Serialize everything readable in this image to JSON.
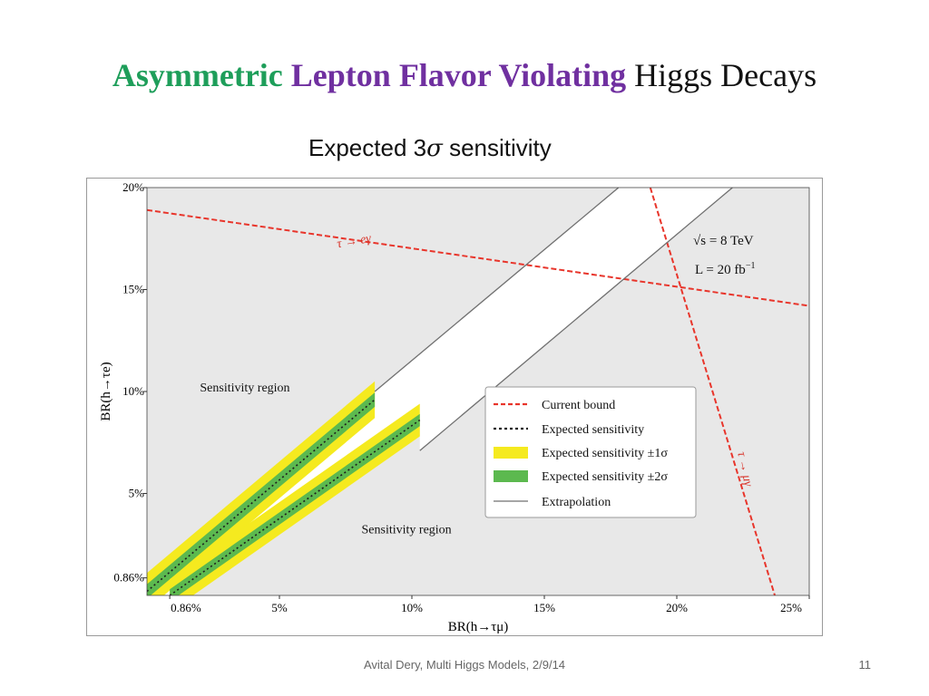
{
  "title": {
    "part1": "Asymmetric",
    "part2": "Lepton Flavor Violating",
    "part3": "Higgs Decays",
    "color1": "#1e9e5a",
    "color2": "#7030a0"
  },
  "subtitle": {
    "prefix": "Expected 3",
    "sigma": "σ",
    "suffix": " sensitivity"
  },
  "footer": {
    "text": "Avital Dery, Multi Higgs Models, 2/9/14",
    "page": "11"
  },
  "chart_data": {
    "type": "line",
    "xlabel": "BR(h→τμ)",
    "ylabel": "BR(h→τe)",
    "xlim": [
      0.0,
      25.0
    ],
    "ylim": [
      0.0,
      20.0
    ],
    "x_ticks": [
      {
        "value": 0.86,
        "label": "0.86%"
      },
      {
        "value": 5,
        "label": "5%"
      },
      {
        "value": 10,
        "label": "10%"
      },
      {
        "value": 15,
        "label": "15%"
      },
      {
        "value": 20,
        "label": "20%"
      },
      {
        "value": 25,
        "label": "25%"
      }
    ],
    "y_ticks": [
      {
        "value": 0.86,
        "label": "0.86%"
      },
      {
        "value": 5,
        "label": "5%"
      },
      {
        "value": 10,
        "label": "10%"
      },
      {
        "value": 15,
        "label": "15%"
      },
      {
        "value": 20,
        "label": "20%"
      }
    ],
    "series": [
      {
        "name": "Current bound τ→eγ",
        "style": "red-dashed",
        "x": [
          0.0,
          25.0
        ],
        "y": [
          18.9,
          14.2
        ]
      },
      {
        "name": "Current bound τ→μγ",
        "style": "red-dashed",
        "x": [
          19.0,
          23.7
        ],
        "y": [
          20.0,
          0.0
        ]
      },
      {
        "name": "Extrapolation (upper)",
        "style": "gray-solid",
        "x": [
          8.6,
          17.8
        ],
        "y": [
          10.0,
          20.0
        ]
      },
      {
        "name": "Extrapolation (lower)",
        "style": "gray-solid",
        "x": [
          10.3,
          22.1
        ],
        "y": [
          7.1,
          20.0
        ]
      },
      {
        "name": "Expected sensitivity (upper)",
        "style": "black-dotted",
        "x": [
          0.0,
          8.6
        ],
        "y": [
          0.2,
          9.6
        ],
        "band1": 0.9,
        "band2": 0.35
      },
      {
        "name": "Expected sensitivity (lower)",
        "style": "black-dotted",
        "x": [
          0.86,
          10.3
        ],
        "y": [
          0.0,
          8.6
        ],
        "band1": 0.8,
        "band2": 0.3
      }
    ],
    "annotations": {
      "sensitivity_upper": {
        "text": "Sensitivity region",
        "x": 2.0,
        "y": 10.0
      },
      "sensitivity_lower": {
        "text": "Sensitivity region",
        "x": 8.1,
        "y": 3.05
      },
      "tau_egamma": {
        "text": "τ → eγ",
        "x": 7.2,
        "y": 17.05
      },
      "tau_mugamma": {
        "text": "τ → μγ",
        "x": 22.3,
        "y": 7.0
      },
      "energy": {
        "text": "√s = 8 TeV"
      },
      "luminosity": {
        "prefix": "L = 20 fb",
        "sup": "−1"
      }
    },
    "legend": {
      "position": "right",
      "items": [
        {
          "label": "Current bound",
          "kind": "red-dashed"
        },
        {
          "label": "Expected sensitivity",
          "kind": "black-dotted"
        },
        {
          "label": "Expected sensitivity ±1σ",
          "kind": "yellow-patch"
        },
        {
          "label": "Expected sensitivity ±2σ",
          "kind": "green-patch"
        },
        {
          "label": "Extrapolation",
          "kind": "gray-line"
        }
      ]
    },
    "colors": {
      "background": "#e8e8e8",
      "allowed_band": "#ffffff",
      "bound": "#e8352b",
      "yellow": "#f5ea1f",
      "green": "#5cb94f",
      "extrapolation": "#707070"
    }
  }
}
